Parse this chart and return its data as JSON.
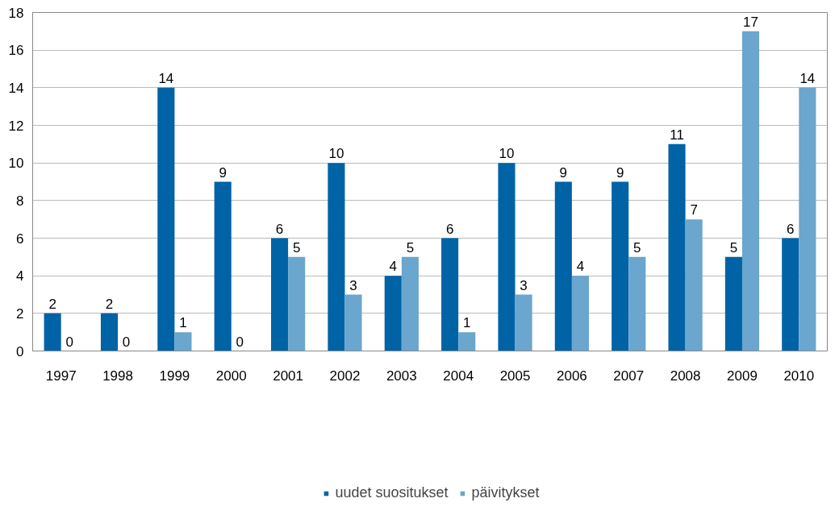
{
  "chart_data": {
    "type": "bar",
    "categories": [
      "1997",
      "1998",
      "1999",
      "2000",
      "2001",
      "2002",
      "2003",
      "2004",
      "2005",
      "2006",
      "2007",
      "2008",
      "2009",
      "2010"
    ],
    "series": [
      {
        "name": "uudet suositukset",
        "color": "#0063a6",
        "values": [
          2,
          2,
          14,
          9,
          6,
          10,
          4,
          6,
          10,
          9,
          9,
          11,
          5,
          6
        ]
      },
      {
        "name": "päivitykset",
        "color": "#6aa6cd",
        "values": [
          0,
          0,
          1,
          0,
          5,
          3,
          5,
          1,
          3,
          4,
          5,
          7,
          17,
          14
        ]
      }
    ],
    "ylim": [
      0,
      18
    ],
    "yticks": [
      0,
      2,
      4,
      6,
      8,
      10,
      12,
      14,
      16,
      18
    ],
    "grid": "y",
    "legend": "bottom",
    "data_labels": true
  }
}
